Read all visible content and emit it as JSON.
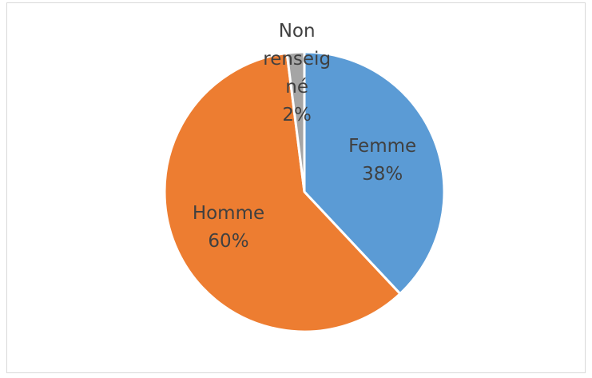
{
  "chart_data": {
    "type": "pie",
    "categories": [
      "Femme",
      "Homme",
      "Non renseigné"
    ],
    "values": [
      38,
      60,
      2
    ],
    "value_labels": [
      "38%",
      "60%",
      "2%"
    ],
    "colors": [
      "#5b9bd5",
      "#ed7d31",
      "#a5a5a5"
    ]
  }
}
